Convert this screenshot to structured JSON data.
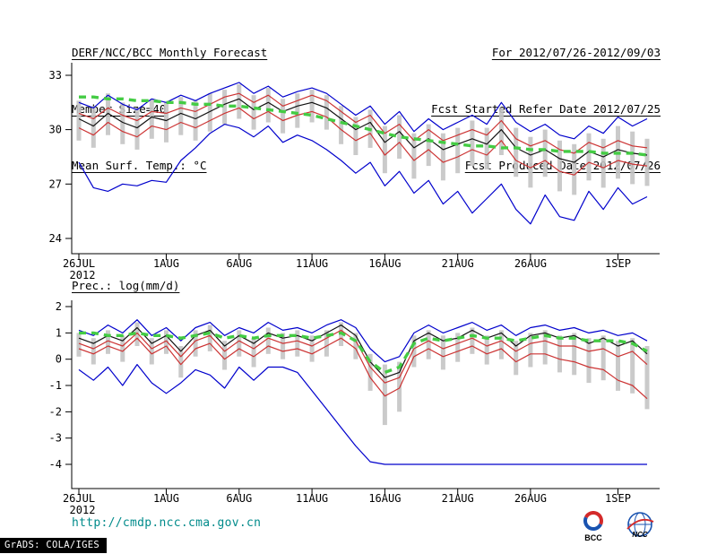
{
  "header": {
    "title": "DERF/NCC/BCC Monthly Forecast",
    "member_size": "Member Size=40",
    "variable_label": "Mean Surf. Temp.: °C",
    "forecast_range": "For 2012/07/26-2012/09/03",
    "refer_date": "Fcst Started Refer Date 2012/07/25",
    "produced_date": "Fcst Produced Date 2012/07/26"
  },
  "precip_label": "Prec.: log(mm/d)",
  "footer": {
    "url": "http://cmdp.ncc.cma.gov.cn",
    "grads_credit": "GrADS: COLA/IGES",
    "bcc_logo_label": "BCC",
    "ncc_logo_label": "NCC"
  },
  "colors": {
    "axis": "#000000",
    "url_text": "#008b8b",
    "blue_line": "#0000cc",
    "red_line": "#cc3333",
    "black_line": "#111111",
    "green_dash": "#44cc44",
    "spread_bar": "#c4c4c4"
  },
  "chart_data": [
    {
      "type": "line",
      "title": "Mean Surf. Temp.: °C",
      "xlabel": "",
      "ylabel": "°C",
      "ylim": [
        23.16,
        33.69
      ],
      "yticks": [
        24,
        27,
        30,
        33
      ],
      "grid": false,
      "legend": false,
      "n_points": 40,
      "year_label": "2012",
      "x_ticks": [
        {
          "day": 0,
          "label": "26JUL"
        },
        {
          "day": 6,
          "label": "1AUG"
        },
        {
          "day": 11,
          "label": "6AUG"
        },
        {
          "day": 16,
          "label": "11AUG"
        },
        {
          "day": 21,
          "label": "16AUG"
        },
        {
          "day": 26,
          "label": "21AUG"
        },
        {
          "day": 31,
          "label": "26AUG"
        },
        {
          "day": 37,
          "label": "1SEP"
        }
      ],
      "series": [
        {
          "name": "ensemble-max",
          "color": "#0000cc",
          "style": "solid",
          "values": [
            31.5,
            31.2,
            31.9,
            31.4,
            31.1,
            31.7,
            31.5,
            31.9,
            31.6,
            32.0,
            32.3,
            32.6,
            32.0,
            32.4,
            31.8,
            32.1,
            32.3,
            32.0,
            31.4,
            30.8,
            31.3,
            30.3,
            31.0,
            29.9,
            30.6,
            30.0,
            30.4,
            30.8,
            30.3,
            31.5,
            30.4,
            29.9,
            30.3,
            29.7,
            29.5,
            30.2,
            29.8,
            30.7,
            30.2,
            30.6
          ]
        },
        {
          "name": "upper-quartile",
          "color": "#cc3333",
          "style": "solid",
          "values": [
            30.9,
            30.6,
            31.2,
            30.8,
            30.5,
            31.0,
            30.9,
            31.2,
            31.0,
            31.4,
            31.8,
            32.0,
            31.5,
            31.9,
            31.3,
            31.6,
            31.9,
            31.6,
            31.0,
            30.4,
            30.8,
            29.8,
            30.3,
            29.4,
            30.0,
            29.4,
            29.7,
            30.0,
            29.7,
            30.5,
            29.5,
            29.1,
            29.4,
            28.9,
            28.7,
            29.3,
            29.0,
            29.4,
            29.1,
            29.0
          ]
        },
        {
          "name": "ensemble-mean",
          "color": "#111111",
          "style": "solid",
          "values": [
            30.6,
            30.2,
            30.9,
            30.4,
            30.1,
            30.7,
            30.5,
            30.9,
            30.6,
            31.0,
            31.4,
            31.7,
            31.1,
            31.5,
            31.0,
            31.3,
            31.5,
            31.2,
            30.6,
            30.0,
            30.4,
            29.3,
            29.9,
            29.0,
            29.5,
            28.9,
            29.2,
            29.5,
            29.2,
            30.0,
            29.0,
            28.6,
            28.9,
            28.4,
            28.2,
            28.8,
            28.5,
            28.9,
            28.7,
            28.6
          ]
        },
        {
          "name": "lower-quartile",
          "color": "#cc3333",
          "style": "solid",
          "values": [
            30.1,
            29.7,
            30.4,
            29.9,
            29.6,
            30.2,
            30.0,
            30.4,
            30.1,
            30.5,
            30.9,
            31.2,
            30.6,
            31.0,
            30.5,
            30.8,
            31.0,
            30.7,
            30.0,
            29.4,
            29.8,
            28.6,
            29.3,
            28.3,
            28.9,
            28.2,
            28.5,
            28.9,
            28.6,
            29.4,
            28.3,
            27.9,
            28.3,
            27.7,
            27.5,
            28.2,
            27.9,
            28.3,
            28.1,
            28.0
          ]
        },
        {
          "name": "ensemble-min",
          "color": "#0000cc",
          "style": "solid",
          "values": [
            28.2,
            26.8,
            26.6,
            27.0,
            26.9,
            27.2,
            27.1,
            28.3,
            29.0,
            29.8,
            30.3,
            30.1,
            29.6,
            30.2,
            29.3,
            29.7,
            29.4,
            28.9,
            28.3,
            27.6,
            28.2,
            26.9,
            27.7,
            26.5,
            27.2,
            25.9,
            26.6,
            25.4,
            26.2,
            27.0,
            25.6,
            24.8,
            26.4,
            25.2,
            25.0,
            26.6,
            25.6,
            26.8,
            25.9,
            26.3
          ]
        },
        {
          "name": "climatology",
          "color": "#44cc44",
          "style": "dashed",
          "values": [
            31.8,
            31.8,
            31.7,
            31.7,
            31.6,
            31.6,
            31.5,
            31.5,
            31.4,
            31.4,
            31.3,
            31.3,
            31.2,
            31.1,
            31.0,
            30.9,
            30.8,
            30.6,
            30.4,
            30.2,
            30.0,
            29.8,
            29.6,
            29.5,
            29.4,
            29.3,
            29.2,
            29.1,
            29.1,
            29.0,
            29.0,
            28.9,
            28.9,
            28.8,
            28.8,
            28.8,
            28.7,
            28.7,
            28.7,
            28.6
          ]
        }
      ],
      "spread_bars": {
        "color": "#c4c4c4",
        "high": [
          31.6,
          31.3,
          32.0,
          31.5,
          31.2,
          31.7,
          31.5,
          31.8,
          31.6,
          32.0,
          32.2,
          32.5,
          31.9,
          32.3,
          31.7,
          32.0,
          32.2,
          31.9,
          31.3,
          30.7,
          31.1,
          30.2,
          30.8,
          29.8,
          30.3,
          29.8,
          30.1,
          30.5,
          30.1,
          31.2,
          30.1,
          29.6,
          30.0,
          29.4,
          29.2,
          29.8,
          29.5,
          30.2,
          29.9,
          29.5
        ],
        "low": [
          29.4,
          29.0,
          29.7,
          29.2,
          28.9,
          29.5,
          29.3,
          29.7,
          29.4,
          29.9,
          30.3,
          30.6,
          30.0,
          30.4,
          29.8,
          30.1,
          30.4,
          30.0,
          29.2,
          28.6,
          29.0,
          27.6,
          28.4,
          27.3,
          28.0,
          27.2,
          27.6,
          28.0,
          27.8,
          28.6,
          27.4,
          26.8,
          27.4,
          26.6,
          26.4,
          27.2,
          26.8,
          27.3,
          27.0,
          26.9
        ]
      }
    },
    {
      "type": "line",
      "title": "Prec.: log(mm/d)",
      "xlabel": "",
      "ylabel": "log(mm/d)",
      "ylim": [
        -4.92,
        2.24
      ],
      "yticks": [
        -4,
        -3,
        -2,
        -1,
        0,
        1,
        2
      ],
      "grid": false,
      "legend": false,
      "n_points": 40,
      "year_label": "2012",
      "x_ticks": [
        {
          "day": 0,
          "label": "26JUL"
        },
        {
          "day": 6,
          "label": "1AUG"
        },
        {
          "day": 11,
          "label": "6AUG"
        },
        {
          "day": 16,
          "label": "11AUG"
        },
        {
          "day": 21,
          "label": "16AUG"
        },
        {
          "day": 26,
          "label": "21AUG"
        },
        {
          "day": 31,
          "label": "26AUG"
        },
        {
          "day": 37,
          "label": "1SEP"
        }
      ],
      "series": [
        {
          "name": "ensemble-max",
          "color": "#0000cc",
          "style": "solid",
          "values": [
            1.1,
            0.9,
            1.3,
            1.0,
            1.5,
            0.9,
            1.2,
            0.7,
            1.2,
            1.4,
            0.9,
            1.2,
            1.0,
            1.4,
            1.1,
            1.2,
            1.0,
            1.3,
            1.5,
            1.2,
            0.4,
            -0.1,
            0.1,
            1.0,
            1.3,
            1.0,
            1.2,
            1.4,
            1.1,
            1.3,
            0.9,
            1.2,
            1.3,
            1.1,
            1.2,
            1.0,
            1.1,
            0.9,
            1.0,
            0.7
          ]
        },
        {
          "name": "upper-quartile",
          "color": "#cc3333",
          "style": "solid",
          "values": [
            0.6,
            0.4,
            0.7,
            0.5,
            1.0,
            0.4,
            0.7,
            0.1,
            0.7,
            0.9,
            0.3,
            0.7,
            0.4,
            0.8,
            0.6,
            0.7,
            0.5,
            0.8,
            1.1,
            0.7,
            -0.3,
            -0.9,
            -0.7,
            0.4,
            0.7,
            0.4,
            0.6,
            0.8,
            0.5,
            0.7,
            0.3,
            0.6,
            0.7,
            0.5,
            0.5,
            0.3,
            0.4,
            0.1,
            0.3,
            -0.2
          ]
        },
        {
          "name": "ensemble-mean",
          "color": "#111111",
          "style": "solid",
          "values": [
            0.8,
            0.6,
            0.9,
            0.7,
            1.2,
            0.6,
            0.9,
            0.3,
            0.9,
            1.1,
            0.5,
            0.9,
            0.6,
            1.0,
            0.8,
            0.9,
            0.7,
            1.0,
            1.3,
            0.9,
            -0.1,
            -0.7,
            -0.5,
            0.7,
            1.0,
            0.7,
            0.8,
            1.1,
            0.8,
            1.0,
            0.5,
            0.9,
            1.0,
            0.8,
            0.9,
            0.6,
            0.8,
            0.5,
            0.7,
            0.2
          ]
        },
        {
          "name": "lower-quartile",
          "color": "#cc3333",
          "style": "solid",
          "values": [
            0.4,
            0.2,
            0.5,
            0.3,
            0.8,
            0.2,
            0.5,
            -0.2,
            0.4,
            0.6,
            0.0,
            0.4,
            0.1,
            0.5,
            0.3,
            0.4,
            0.2,
            0.5,
            0.8,
            0.4,
            -0.7,
            -1.4,
            -1.1,
            0.1,
            0.4,
            0.1,
            0.3,
            0.5,
            0.2,
            0.4,
            -0.1,
            0.2,
            0.2,
            0.0,
            -0.1,
            -0.3,
            -0.4,
            -0.8,
            -1.0,
            -1.5
          ]
        },
        {
          "name": "ensemble-min",
          "color": "#0000cc",
          "style": "solid",
          "values": [
            -0.4,
            -0.8,
            -0.3,
            -1.0,
            -0.2,
            -0.9,
            -1.3,
            -0.9,
            -0.4,
            -0.6,
            -1.1,
            -0.3,
            -0.8,
            -0.3,
            -0.3,
            -0.5,
            -1.2,
            -1.9,
            -2.6,
            -3.3,
            -3.9,
            -4.0,
            -4.0,
            -4.0,
            -4.0,
            -4.0,
            -4.0,
            -4.0,
            -4.0,
            -4.0,
            -4.0,
            -4.0,
            -4.0,
            -4.0,
            -4.0,
            -4.0,
            -4.0,
            -4.0,
            -4.0,
            -4.0
          ]
        },
        {
          "name": "climatology",
          "color": "#44cc44",
          "style": "dashed",
          "values": [
            1.0,
            1.0,
            0.9,
            0.9,
            1.0,
            0.9,
            0.9,
            0.8,
            0.9,
            1.0,
            0.8,
            0.9,
            0.8,
            0.9,
            0.9,
            0.9,
            0.8,
            0.9,
            1.0,
            0.7,
            -0.1,
            -0.5,
            -0.3,
            0.6,
            0.8,
            0.7,
            0.8,
            0.9,
            0.8,
            0.8,
            0.7,
            0.8,
            0.9,
            0.8,
            0.8,
            0.7,
            0.7,
            0.7,
            0.6,
            0.3
          ]
        }
      ],
      "spread_bars": {
        "color": "#c4c4c4",
        "high": [
          1.0,
          0.8,
          1.1,
          0.9,
          1.4,
          0.8,
          1.1,
          0.5,
          1.1,
          1.3,
          0.7,
          1.1,
          0.8,
          1.2,
          1.0,
          1.1,
          0.9,
          1.1,
          1.4,
          1.0,
          0.2,
          -0.2,
          -0.1,
          0.9,
          1.1,
          0.9,
          1.0,
          1.2,
          0.9,
          1.1,
          0.7,
          1.0,
          1.1,
          0.9,
          1.0,
          0.8,
          0.9,
          0.7,
          0.8,
          0.5
        ],
        "low": [
          0.1,
          -0.2,
          0.2,
          -0.1,
          0.5,
          -0.2,
          0.2,
          -0.7,
          0.1,
          0.3,
          -0.4,
          0.1,
          -0.3,
          0.2,
          0.0,
          0.1,
          -0.1,
          0.1,
          0.5,
          0.0,
          -1.2,
          -2.5,
          -2.0,
          -0.3,
          0.0,
          -0.4,
          -0.1,
          0.2,
          -0.2,
          0.0,
          -0.6,
          -0.3,
          -0.2,
          -0.5,
          -0.6,
          -0.9,
          -0.8,
          -1.2,
          -1.3,
          -1.9
        ]
      }
    }
  ]
}
